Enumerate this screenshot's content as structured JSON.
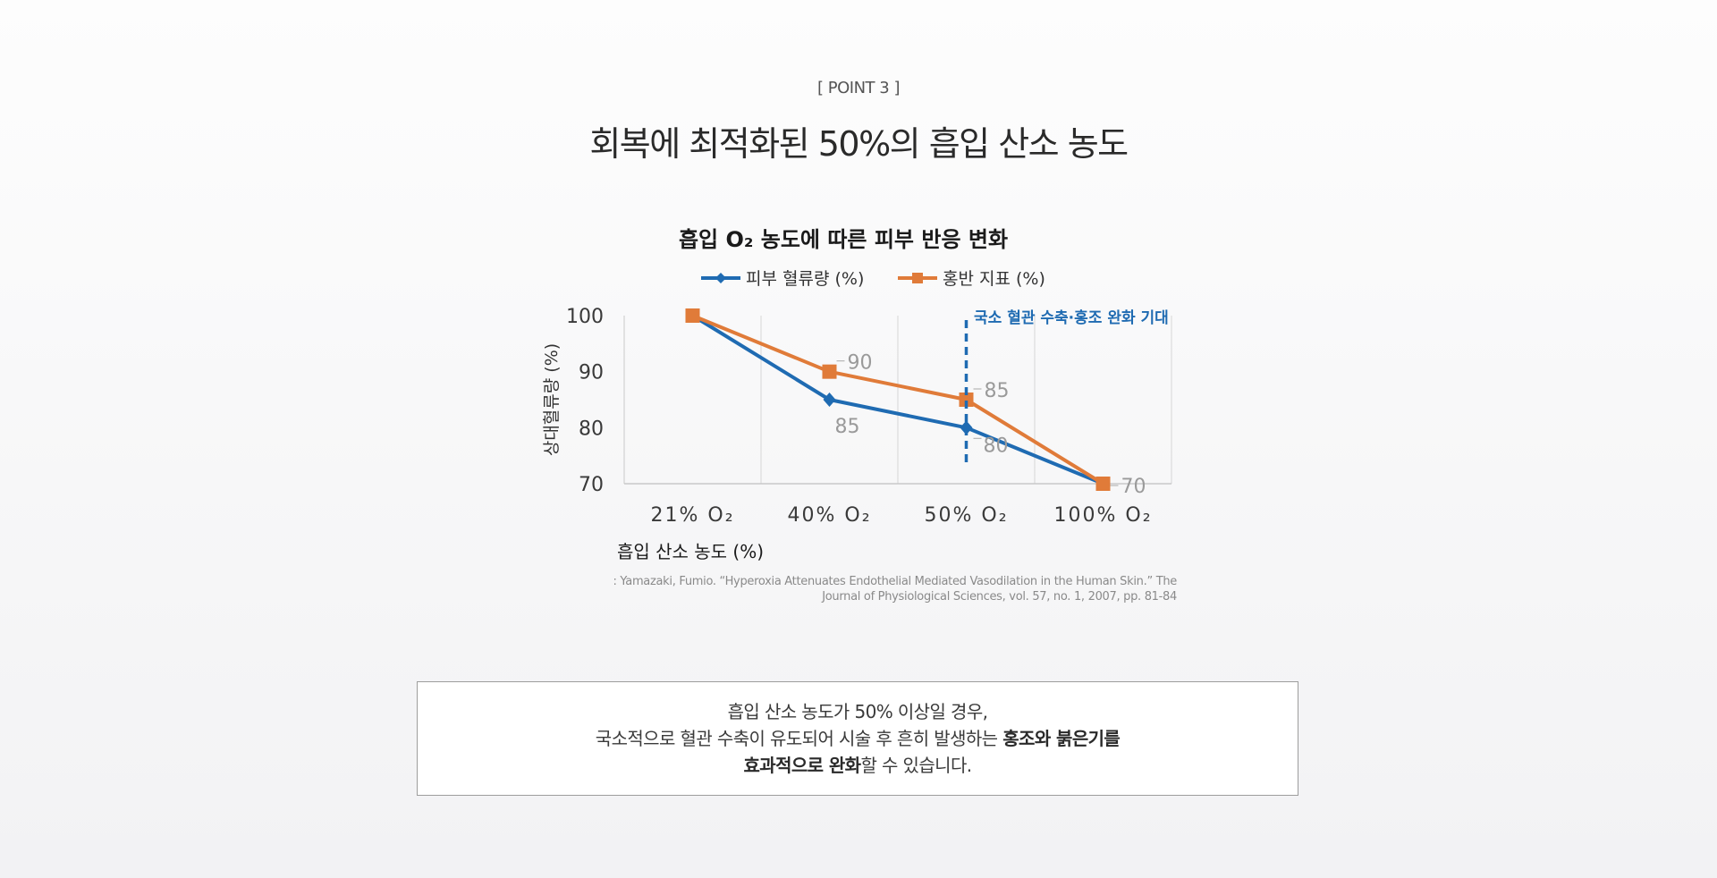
{
  "point_label": "[ POINT 3 ]",
  "headline": "회복에 최적화된 50%의 흡입 산소 농도",
  "chart_data": {
    "type": "line",
    "title": "흡입 O₂ 농도에 따른 피부 반응 변화",
    "xlabel": "흡입 산소 농도 (%)",
    "ylabel": "상대혈류량 (%)",
    "categories": [
      "21% O₂",
      "40% O₂",
      "50% O₂",
      "100% O₂"
    ],
    "ylim": [
      70,
      100
    ],
    "yticks": [
      70,
      80,
      90,
      100
    ],
    "grid": "vertical",
    "legend_position": "top",
    "series": [
      {
        "name": "피부 혈류량 (%)",
        "values": [
          100,
          85,
          80,
          70
        ],
        "data_labels": [
          null,
          "85",
          "80",
          null
        ],
        "color": "#1f6bb2",
        "marker": "diamond"
      },
      {
        "name": "홍반 지표 (%)",
        "values": [
          100,
          90,
          85,
          70
        ],
        "data_labels": [
          null,
          "90",
          "85",
          "70"
        ],
        "color": "#e07b39",
        "marker": "square"
      }
    ],
    "annotation": {
      "text": "국소 혈관 수축·홍조 완화 기대",
      "category": "50% O₂",
      "color": "#1f6bb2"
    }
  },
  "source": {
    "line1": ": Yamazaki, Fumio. “Hyperoxia Attenuates Endothelial Mediated Vasodilation in the Human Skin.” The",
    "line2": "Journal of Physiological Sciences, vol. 57, no. 1, 2007, pp. 81-84"
  },
  "note": {
    "line1": "흡입 산소 농도가 50% 이상일 경우,",
    "line2_plain": "국소적으로 혈관 수축이 유도되어 시술 후 흔히 발생하는 ",
    "line2_bold": "홍조와 붉은기를",
    "line3_bold": "효과적으로 완화",
    "line3_plain": "할 수 있습니다."
  }
}
